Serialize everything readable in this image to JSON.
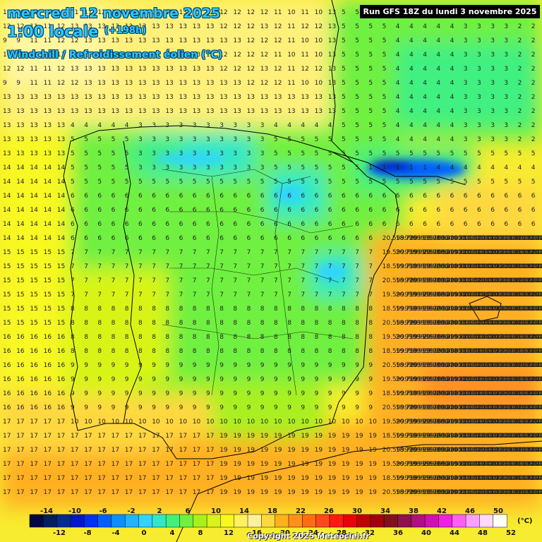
{
  "header": {
    "date_line": "mercredi 12 novembre 2025",
    "time_line": "1:00 locale",
    "lead_time": "(+198h)",
    "parameter": "Windchill / Refroidissement éolien (°C)",
    "run_info": "Run GFS 18Z du lundi 3 novembre 2025"
  },
  "legend": {
    "unit": "(°C)",
    "top_ticks": [
      "-14",
      "-10",
      "-6",
      "-2",
      "2",
      "6",
      "10",
      "14",
      "18",
      "22",
      "26",
      "30",
      "34",
      "38",
      "42",
      "46",
      "50"
    ],
    "bottom_ticks": [
      "-12",
      "-8",
      "-4",
      "0",
      "4",
      "8",
      "12",
      "16",
      "20",
      "24",
      "28",
      "32",
      "36",
      "40",
      "44",
      "48",
      "52"
    ],
    "colors": [
      "#000840",
      "#00205a",
      "#002c8c",
      "#0018c8",
      "#0030f0",
      "#0060ff",
      "#0a90ff",
      "#22b4ff",
      "#30d4ff",
      "#30e8c8",
      "#40f080",
      "#70f040",
      "#a8f020",
      "#d8f418",
      "#f8f820",
      "#fff060",
      "#fff0a0",
      "#ffd840",
      "#ffb020",
      "#ff9020",
      "#ff6c18",
      "#ff4820",
      "#ff1818",
      "#e80010",
      "#c00008",
      "#a00010",
      "#801020",
      "#901050",
      "#b01080",
      "#d010b0",
      "#f020e0",
      "#ff60f0",
      "#ffa0ff",
      "#ffd8ff",
      "#ffffff"
    ]
  },
  "copyright": "Copyright 2025 Meteociel.fr",
  "map_values": {
    "row_labels_sample": [
      [
        "10",
        "10",
        "11",
        "11",
        "11",
        "11",
        "11",
        "12",
        "12",
        "12",
        "13",
        "13",
        "13",
        "13",
        "13",
        "12",
        "12",
        "12",
        "12",
        "12",
        "11",
        "10",
        "11",
        "10"
      ],
      [
        "12",
        "12",
        "11",
        "11",
        "12",
        "13",
        "13",
        "13",
        "13",
        "13",
        "13",
        "13",
        "13",
        "13",
        "13",
        "13",
        "12",
        "12",
        "12",
        "13",
        "12",
        "11",
        "12",
        "12"
      ],
      [
        "9",
        "9",
        "11",
        "11",
        "12",
        "12",
        "13",
        "13",
        "13",
        "13",
        "13",
        "13",
        "13",
        "13",
        "13",
        "13",
        "13",
        "13",
        "12",
        "12",
        "12",
        "11",
        "10",
        "10"
      ]
    ]
  }
}
